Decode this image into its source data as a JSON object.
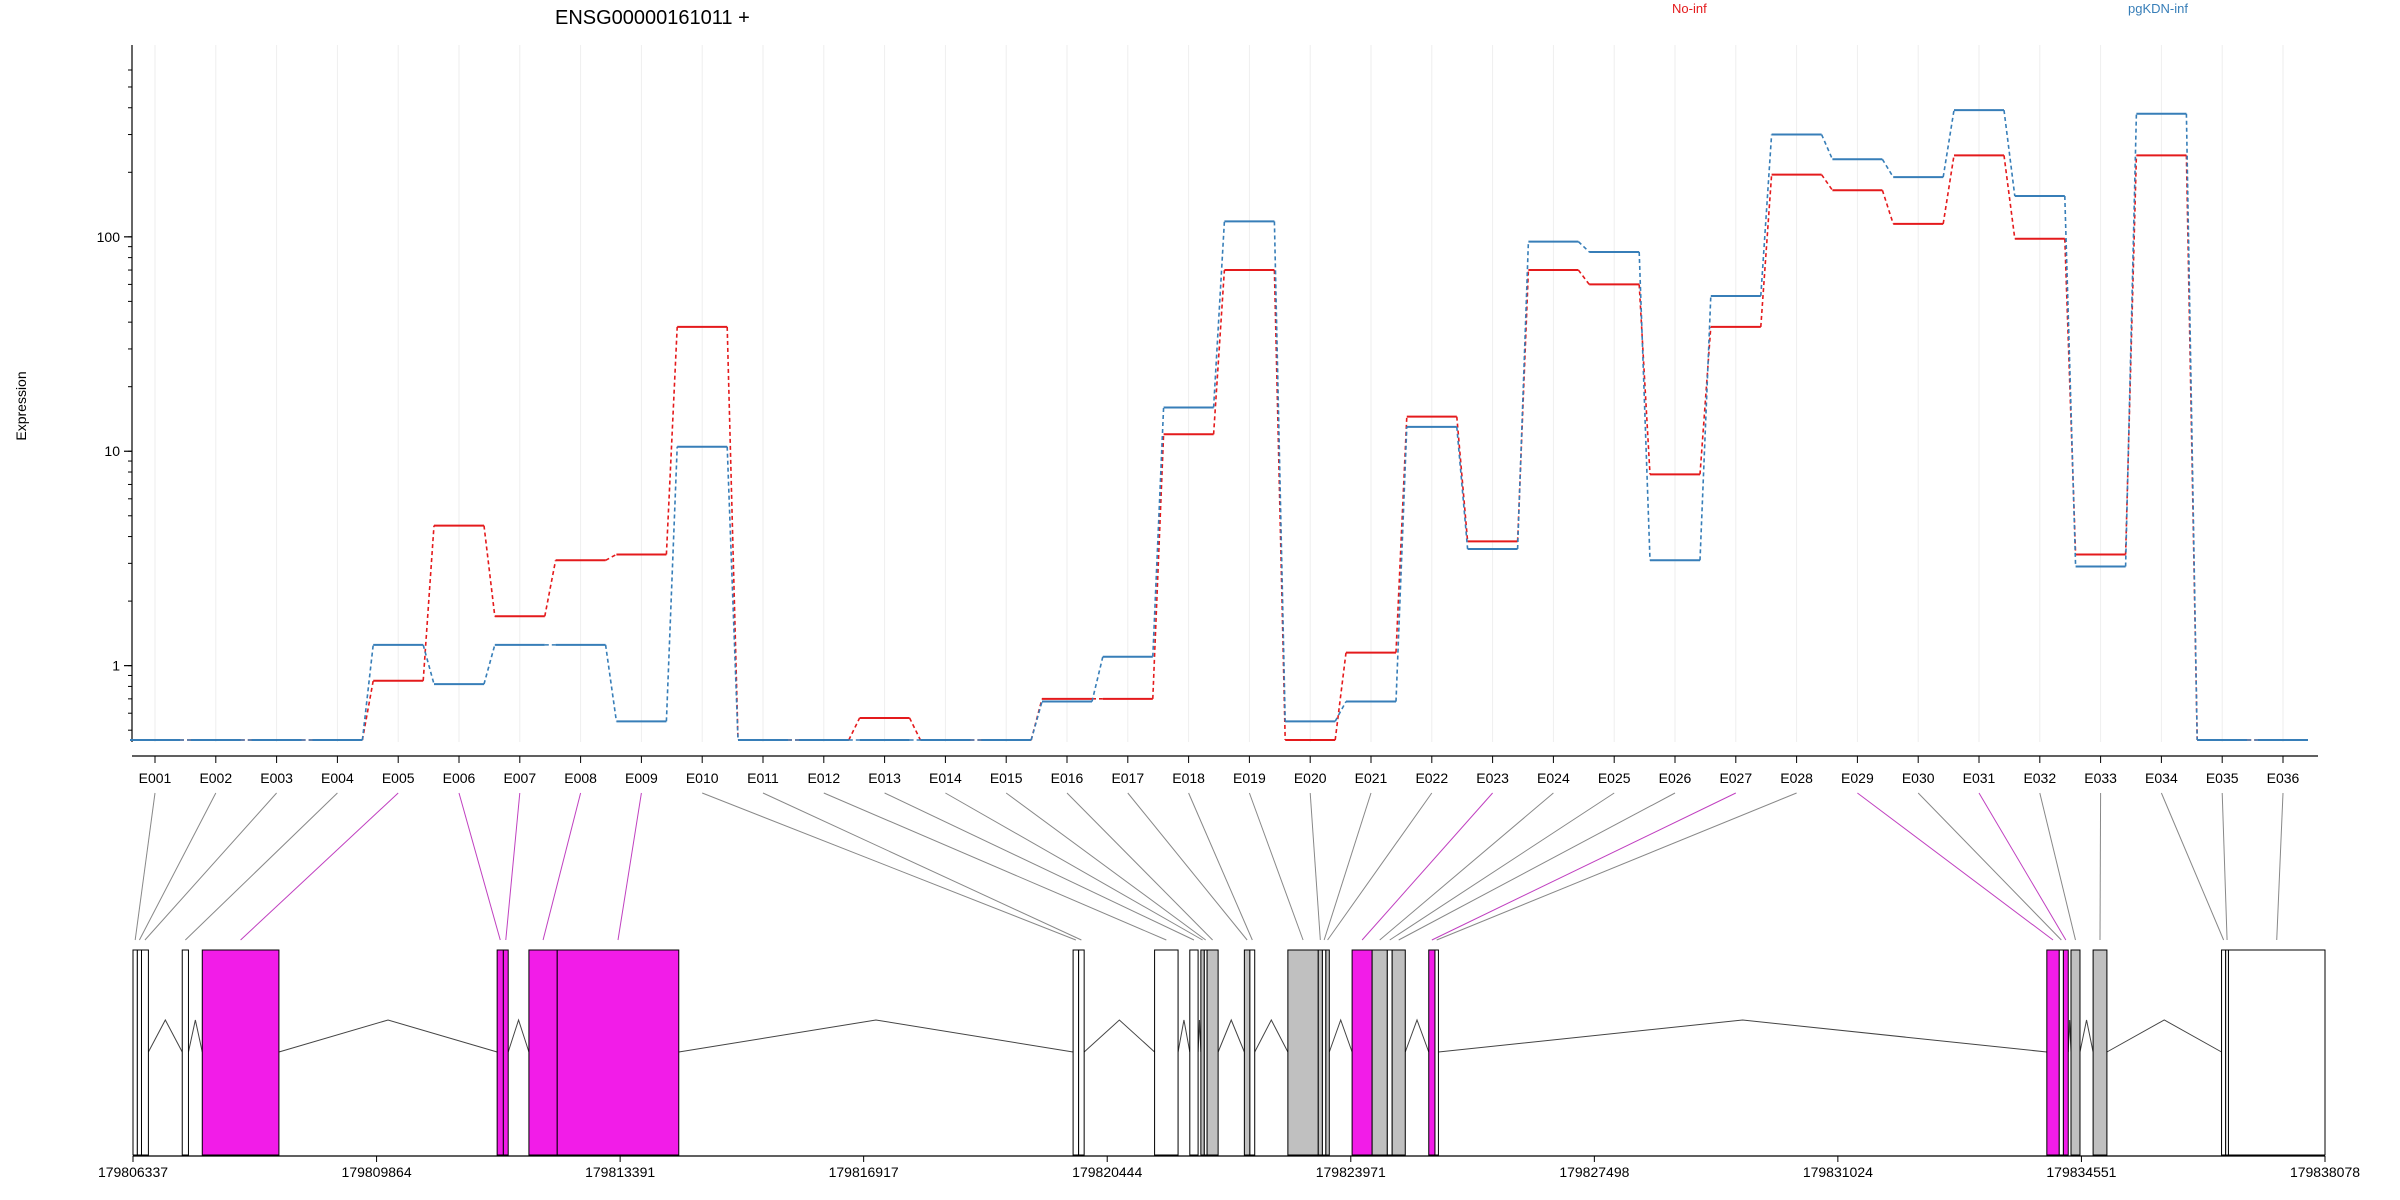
{
  "title": "ENSG00000161011 +",
  "legend": [
    {
      "label": "No-inf",
      "color": "#e41a1c"
    },
    {
      "label": "pgKDN-inf",
      "color": "#377eb8"
    }
  ],
  "colors": {
    "significant": "#f21ce8",
    "shaded": "#c0c0c0",
    "plain": "#ffffff",
    "axis": "#000000",
    "connector_gray": "#888888",
    "connector_magenta": "#c040c0"
  },
  "chart_data": {
    "type": "line",
    "title": "ENSG00000161011 +",
    "ylabel": "Expression",
    "xlabel": "",
    "yscale": "log",
    "y_ticks": [
      1,
      10,
      100
    ],
    "y_tick_labels": [
      "1",
      "10",
      "100"
    ],
    "ylim": [
      0.45,
      600
    ],
    "grid": true,
    "legend_position": "top",
    "categories": [
      "E001",
      "E002",
      "E003",
      "E004",
      "E005",
      "E006",
      "E007",
      "E008",
      "E009",
      "E010",
      "E011",
      "E012",
      "E013",
      "E014",
      "E015",
      "E016",
      "E017",
      "E018",
      "E019",
      "E020",
      "E021",
      "E022",
      "E023",
      "E024",
      "E025",
      "E026",
      "E027",
      "E028",
      "E029",
      "E030",
      "E031",
      "E032",
      "E033",
      "E034",
      "E035",
      "E036"
    ],
    "series": [
      {
        "name": "No-inf",
        "color": "#e41a1c",
        "values": [
          0.45,
          0.45,
          0.45,
          0.45,
          0.85,
          4.5,
          1.7,
          3.1,
          3.3,
          38,
          0.45,
          0.45,
          0.57,
          0.45,
          0.45,
          0.7,
          0.7,
          12,
          70,
          0.45,
          1.15,
          14.5,
          3.8,
          70,
          60,
          7.8,
          38,
          195,
          165,
          115,
          240,
          98,
          3.3,
          240,
          0.45,
          0.45
        ]
      },
      {
        "name": "pgKDN-inf",
        "color": "#377eb8",
        "values": [
          0.45,
          0.45,
          0.45,
          0.45,
          1.25,
          0.82,
          1.25,
          1.25,
          0.55,
          10.5,
          0.45,
          0.45,
          0.45,
          0.45,
          0.45,
          0.68,
          1.1,
          16,
          118,
          0.55,
          0.68,
          13,
          3.5,
          95,
          85,
          3.1,
          53,
          300,
          230,
          190,
          390,
          155,
          2.9,
          375,
          0.45,
          0.45
        ]
      }
    ],
    "gene_model": {
      "coord_ticks": [
        "179806337",
        "179809864",
        "179813391",
        "179816917",
        "179820444",
        "179823971",
        "179827498",
        "179831024",
        "179834551",
        "179838078"
      ],
      "exons": [
        {
          "id": "E001",
          "start": 179806337,
          "end": 179806400,
          "style": "plain"
        },
        {
          "id": "E002",
          "start": 179806400,
          "end": 179806460,
          "style": "plain"
        },
        {
          "id": "E003",
          "start": 179806460,
          "end": 179806560,
          "style": "plain"
        },
        {
          "id": "E004",
          "start": 179807050,
          "end": 179807140,
          "style": "plain"
        },
        {
          "id": "E005",
          "start": 179807340,
          "end": 179808450,
          "style": "significant"
        },
        {
          "id": "E006",
          "start": 179811610,
          "end": 179811700,
          "style": "significant"
        },
        {
          "id": "E007",
          "start": 179811700,
          "end": 179811770,
          "style": "significant"
        },
        {
          "id": "E008",
          "start": 179812070,
          "end": 179812480,
          "style": "significant"
        },
        {
          "id": "E009",
          "start": 179812480,
          "end": 179814240,
          "style": "significant"
        },
        {
          "id": "E010",
          "start": 179819950,
          "end": 179820030,
          "style": "plain"
        },
        {
          "id": "E011",
          "start": 179820030,
          "end": 179820110,
          "style": "plain"
        },
        {
          "id": "E012",
          "start": 179821130,
          "end": 179821470,
          "style": "plain"
        },
        {
          "id": "E013",
          "start": 179821640,
          "end": 179821760,
          "style": "plain"
        },
        {
          "id": "E014",
          "start": 179821800,
          "end": 179821850,
          "style": "shaded"
        },
        {
          "id": "E015",
          "start": 179821850,
          "end": 179821890,
          "style": "plain"
        },
        {
          "id": "E016",
          "start": 179821890,
          "end": 179822050,
          "style": "shaded"
        },
        {
          "id": "E017",
          "start": 179822430,
          "end": 179822510,
          "style": "shaded"
        },
        {
          "id": "E018",
          "start": 179822510,
          "end": 179822580,
          "style": "plain"
        },
        {
          "id": "E019",
          "start": 179823060,
          "end": 179823500,
          "style": "shaded"
        },
        {
          "id": "E020",
          "start": 179823500,
          "end": 179823560,
          "style": "shaded"
        },
        {
          "id": "E021",
          "start": 179823560,
          "end": 179823610,
          "style": "plain"
        },
        {
          "id": "E022",
          "start": 179823610,
          "end": 179823660,
          "style": "shaded"
        },
        {
          "id": "E023",
          "start": 179823990,
          "end": 179824280,
          "style": "significant"
        },
        {
          "id": "E024",
          "start": 179824280,
          "end": 179824500,
          "style": "shaded"
        },
        {
          "id": "E025",
          "start": 179824500,
          "end": 179824570,
          "style": "plain"
        },
        {
          "id": "E026",
          "start": 179824570,
          "end": 179824760,
          "style": "shaded"
        },
        {
          "id": "E027",
          "start": 179825100,
          "end": 179825190,
          "style": "significant"
        },
        {
          "id": "E028",
          "start": 179825190,
          "end": 179825240,
          "style": "plain"
        },
        {
          "id": "E029",
          "start": 179834050,
          "end": 179834230,
          "style": "significant"
        },
        {
          "id": "E030",
          "start": 179834230,
          "end": 179834290,
          "style": "plain"
        },
        {
          "id": "E031",
          "start": 179834290,
          "end": 179834360,
          "style": "significant"
        },
        {
          "id": "E032",
          "start": 179834400,
          "end": 179834530,
          "style": "shaded"
        },
        {
          "id": "E033",
          "start": 179834720,
          "end": 179834920,
          "style": "shaded"
        },
        {
          "id": "E034",
          "start": 179836580,
          "end": 179836640,
          "style": "plain"
        },
        {
          "id": "E035",
          "start": 179836640,
          "end": 179836680,
          "style": "plain"
        },
        {
          "id": "E036",
          "start": 179836680,
          "end": 179838078,
          "style": "plain"
        }
      ]
    }
  }
}
